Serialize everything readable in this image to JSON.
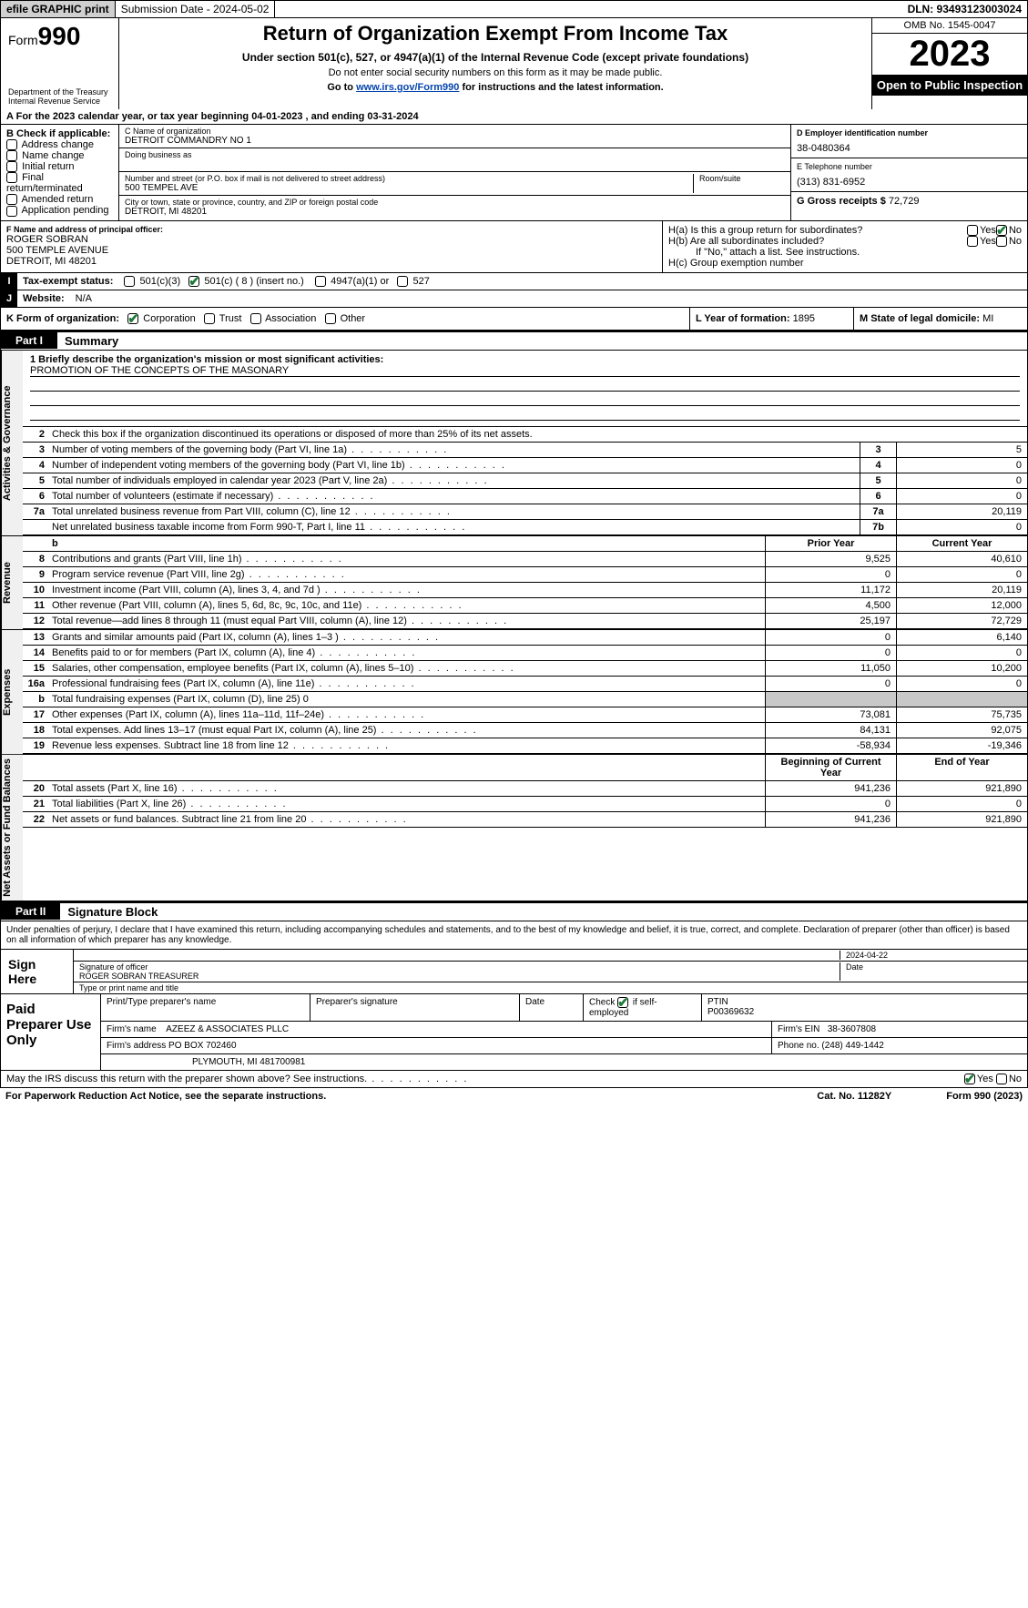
{
  "topbar": {
    "efile": "efile GRAPHIC print",
    "submission": "Submission Date - 2024-05-02",
    "dln": "DLN: 93493123003024"
  },
  "header": {
    "form_prefix": "Form",
    "form_no": "990",
    "dept": "Department of the Treasury\nInternal Revenue Service",
    "title": "Return of Organization Exempt From Income Tax",
    "sub1": "Under section 501(c), 527, or 4947(a)(1) of the Internal Revenue Code (except private foundations)",
    "sub2": "Do not enter social security numbers on this form as it may be made public.",
    "sub3_pre": "Go to ",
    "sub3_link": "www.irs.gov/Form990",
    "sub3_post": " for instructions and the latest information.",
    "omb": "OMB No. 1545-0047",
    "year": "2023",
    "open": "Open to Public Inspection"
  },
  "line_a": "For the 2023 calendar year, or tax year beginning 04-01-2023   , and ending 03-31-2024",
  "box_b": {
    "title": "B Check if applicable:",
    "opts": [
      "Address change",
      "Name change",
      "Initial return",
      "Final return/terminated",
      "Amended return",
      "Application pending"
    ]
  },
  "box_c": {
    "lbl_name": "C Name of organization",
    "name": "DETROIT COMMANDRY NO 1",
    "dba_lbl": "Doing business as",
    "addr_lbl": "Number and street (or P.O. box if mail is not delivered to street address)",
    "room_lbl": "Room/suite",
    "addr": "500 TEMPEL AVE",
    "city_lbl": "City or town, state or province, country, and ZIP or foreign postal code",
    "city": "DETROIT, MI  48201"
  },
  "box_d": {
    "lbl": "D Employer identification number",
    "val": "38-0480364"
  },
  "box_e": {
    "lbl": "E Telephone number",
    "val": "(313) 831-6952"
  },
  "box_g": {
    "lbl": "G Gross receipts $",
    "val": "72,729"
  },
  "box_f": {
    "lbl": "F  Name and address of principal officer:",
    "line1": "ROGER SOBRAN",
    "line2": "500 TEMPLE AVENUE",
    "line3": "DETROIT, MI  48201"
  },
  "box_h": {
    "ha_lbl": "H(a)  Is this a group return for subordinates?",
    "hb_lbl": "H(b)  Are all subordinates included?",
    "hb_note": "If \"No,\" attach a list. See instructions.",
    "hc_lbl": "H(c)  Group exemption number",
    "yes": "Yes",
    "no": "No"
  },
  "row_i": {
    "lbl": "Tax-exempt status:",
    "o1": "501(c)(3)",
    "o2": "501(c) ( 8 ) (insert no.)",
    "o3": "4947(a)(1) or",
    "o4": "527"
  },
  "row_j": {
    "lbl": "Website:",
    "val": "N/A"
  },
  "row_k": {
    "lbl": "K Form of organization:",
    "opts": [
      "Corporation",
      "Trust",
      "Association",
      "Other"
    ],
    "l_lbl": "L Year of formation:",
    "l_val": "1895",
    "m_lbl": "M State of legal domicile:",
    "m_val": "MI"
  },
  "part1": {
    "hdr": "Part I",
    "title": "Summary"
  },
  "mission": {
    "lbl": "1   Briefly describe the organization's mission or most significant activities:",
    "text": "PROMOTION OF THE CONCEPTS OF THE MASONARY"
  },
  "gov_section": "Activities & Governance",
  "rev_section": "Revenue",
  "exp_section": "Expenses",
  "net_section": "Net Assets or Fund Balances",
  "line2": "Check this box      if the organization discontinued its operations or disposed of more than 25% of its net assets.",
  "rows_gov": [
    {
      "n": "3",
      "d": "Number of voting members of the governing body (Part VI, line 1a)",
      "box": "3",
      "v": "5"
    },
    {
      "n": "4",
      "d": "Number of independent voting members of the governing body (Part VI, line 1b)",
      "box": "4",
      "v": "0"
    },
    {
      "n": "5",
      "d": "Total number of individuals employed in calendar year 2023 (Part V, line 2a)",
      "box": "5",
      "v": "0"
    },
    {
      "n": "6",
      "d": "Total number of volunteers (estimate if necessary)",
      "box": "6",
      "v": "0"
    },
    {
      "n": "7a",
      "d": "Total unrelated business revenue from Part VIII, column (C), line 12",
      "box": "7a",
      "v": "20,119"
    },
    {
      "n": "",
      "d": "Net unrelated business taxable income from Form 990-T, Part I, line 11",
      "box": "7b",
      "v": "0"
    }
  ],
  "col_hdrs": {
    "prior": "Prior Year",
    "current": "Current Year",
    "boy": "Beginning of Current Year",
    "eoy": "End of Year"
  },
  "rows_rev": [
    {
      "n": "8",
      "d": "Contributions and grants (Part VIII, line 1h)",
      "p": "9,525",
      "c": "40,610"
    },
    {
      "n": "9",
      "d": "Program service revenue (Part VIII, line 2g)",
      "p": "0",
      "c": "0"
    },
    {
      "n": "10",
      "d": "Investment income (Part VIII, column (A), lines 3, 4, and 7d )",
      "p": "11,172",
      "c": "20,119"
    },
    {
      "n": "11",
      "d": "Other revenue (Part VIII, column (A), lines 5, 6d, 8c, 9c, 10c, and 11e)",
      "p": "4,500",
      "c": "12,000"
    },
    {
      "n": "12",
      "d": "Total revenue—add lines 8 through 11 (must equal Part VIII, column (A), line 12)",
      "p": "25,197",
      "c": "72,729"
    }
  ],
  "rows_exp": [
    {
      "n": "13",
      "d": "Grants and similar amounts paid (Part IX, column (A), lines 1–3 )",
      "p": "0",
      "c": "6,140"
    },
    {
      "n": "14",
      "d": "Benefits paid to or for members (Part IX, column (A), line 4)",
      "p": "0",
      "c": "0"
    },
    {
      "n": "15",
      "d": "Salaries, other compensation, employee benefits (Part IX, column (A), lines 5–10)",
      "p": "11,050",
      "c": "10,200"
    },
    {
      "n": "16a",
      "d": "Professional fundraising fees (Part IX, column (A), line 11e)",
      "p": "0",
      "c": "0"
    }
  ],
  "row_16b": {
    "n": "b",
    "d": "Total fundraising expenses (Part IX, column (D), line 25) 0"
  },
  "rows_exp2": [
    {
      "n": "17",
      "d": "Other expenses (Part IX, column (A), lines 11a–11d, 11f–24e)",
      "p": "73,081",
      "c": "75,735"
    },
    {
      "n": "18",
      "d": "Total expenses. Add lines 13–17 (must equal Part IX, column (A), line 25)",
      "p": "84,131",
      "c": "92,075"
    },
    {
      "n": "19",
      "d": "Revenue less expenses. Subtract line 18 from line 12",
      "p": "-58,934",
      "c": "-19,346"
    }
  ],
  "rows_net": [
    {
      "n": "20",
      "d": "Total assets (Part X, line 16)",
      "p": "941,236",
      "c": "921,890"
    },
    {
      "n": "21",
      "d": "Total liabilities (Part X, line 26)",
      "p": "0",
      "c": "0"
    },
    {
      "n": "22",
      "d": "Net assets or fund balances. Subtract line 21 from line 20",
      "p": "941,236",
      "c": "921,890"
    }
  ],
  "part2": {
    "hdr": "Part II",
    "title": "Signature Block"
  },
  "perjury": "Under penalties of perjury, I declare that I have examined this return, including accompanying schedules and statements, and to the best of my knowledge and belief, it is true, correct, and complete. Declaration of preparer (other than officer) is based on all information of which preparer has any knowledge.",
  "sign": {
    "here": "Sign Here",
    "sig_lbl": "Signature of officer",
    "date_lbl": "Date",
    "date": "2024-04-22",
    "name": "ROGER SOBRAN  TREASURER",
    "name_lbl": "Type or print name and title"
  },
  "prep": {
    "lbl": "Paid Preparer Use Only",
    "h1": "Print/Type preparer's name",
    "h2": "Preparer's signature",
    "h3": "Date",
    "h4": "Check        if self-employed",
    "h5": "PTIN",
    "ptin": "P00369632",
    "firm_lbl": "Firm's name",
    "firm": "AZEEZ & ASSOCIATES PLLC",
    "ein_lbl": "Firm's EIN",
    "ein": "38-3607808",
    "addr_lbl": "Firm's address",
    "addr1": "PO BOX 702460",
    "addr2": "PLYMOUTH, MI  481700981",
    "phone_lbl": "Phone no.",
    "phone": "(248) 449-1442"
  },
  "discuss": "May the IRS discuss this return with the preparer shown above? See instructions.",
  "footer": {
    "pra": "For Paperwork Reduction Act Notice, see the separate instructions.",
    "cat": "Cat. No. 11282Y",
    "form": "Form 990 (2023)"
  },
  "colors": {
    "green": "#1e7a3a",
    "link": "#0645ad"
  }
}
